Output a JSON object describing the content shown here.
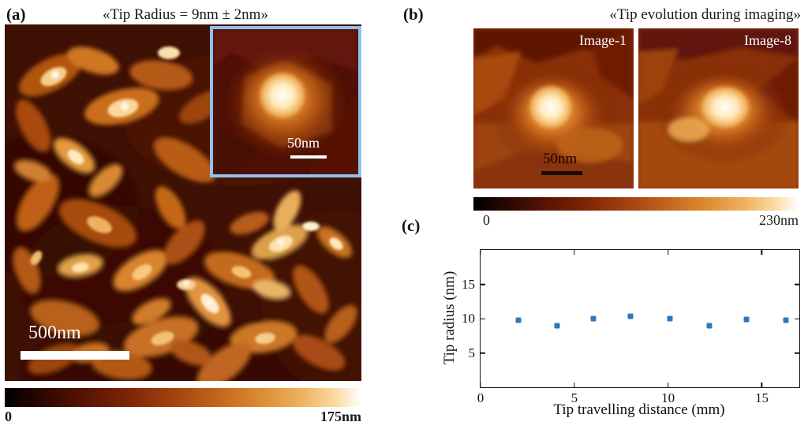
{
  "panel_a": {
    "label": "(a)",
    "title": "«Tip Radius = 9nm ± 2nm»",
    "scalebar": "500nm",
    "inset": {
      "scalebar": "50nm"
    },
    "colorbar": {
      "min": "0",
      "max": "175nm"
    }
  },
  "panel_b": {
    "label": "(b)",
    "title": "«Tip evolution during imaging»",
    "images": [
      {
        "label": "Image-1"
      },
      {
        "label": "Image-8"
      }
    ],
    "scalebar": "50nm",
    "colorbar": {
      "min": "0",
      "max": "230nm"
    }
  },
  "panel_c": {
    "label": "(c)"
  },
  "chart_data": {
    "type": "scatter",
    "x": [
      2.0,
      4.1,
      6.0,
      8.0,
      10.1,
      12.2,
      14.2,
      16.3
    ],
    "y": [
      9.8,
      9.0,
      10.0,
      10.3,
      10.0,
      9.0,
      9.9,
      9.8
    ],
    "xlabel": "Tip travelling distance (mm)",
    "ylabel": "Tip radius (nm)",
    "xlim": [
      0,
      17
    ],
    "ylim": [
      0,
      20
    ],
    "xticks": [
      0,
      5,
      10,
      15
    ],
    "yticks": [
      5,
      10,
      15
    ],
    "marker": "square",
    "marker_color": "#2e77bd",
    "grid": false,
    "legend": "none"
  },
  "colors": {
    "inset_border": "#8fc3ea",
    "scalebar_a": "#ffffff",
    "scalebar_b": "#1c0900",
    "colormap_low": "#000000",
    "colormap_high": "#ffffff"
  }
}
